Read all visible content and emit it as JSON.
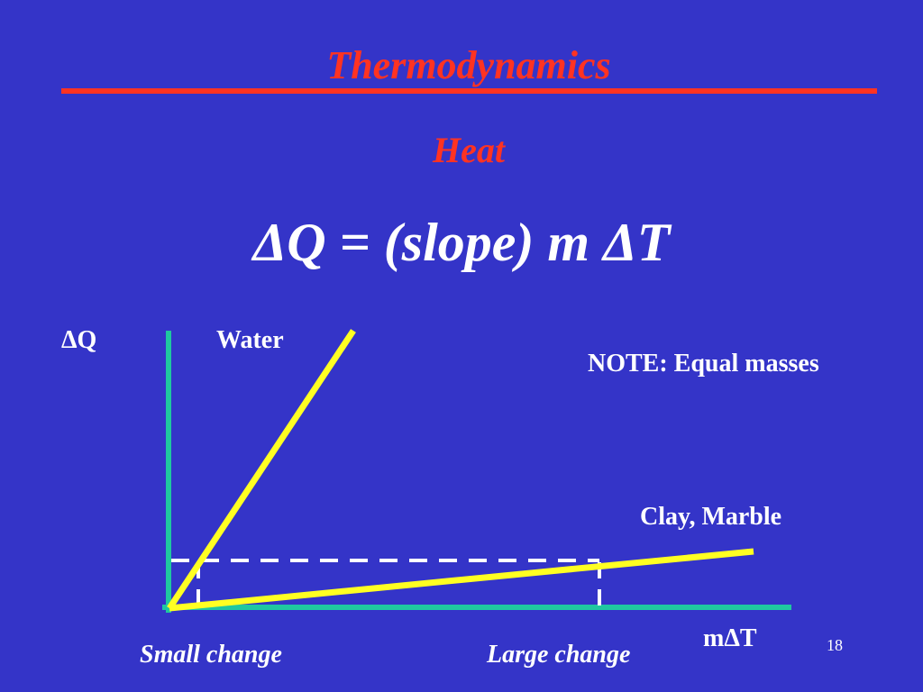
{
  "slide": {
    "title": "Thermodynamics",
    "subtitle": "Heat",
    "equation": "ΔQ = (slope) m ΔT",
    "page_number": "18"
  },
  "labels": {
    "y_axis": "ΔQ",
    "x_axis": "mΔT",
    "water": "Water",
    "clay_marble": "Clay, Marble",
    "note": "NOTE:  Equal masses",
    "small_change": "Small change",
    "large_change": "Large change"
  },
  "colors": {
    "background": "#3434c8",
    "title": "#ff3322",
    "axes": "#1fc7a0",
    "lines": "#ffff22",
    "text": "#ffffff",
    "dashes": "#ffffff"
  }
}
